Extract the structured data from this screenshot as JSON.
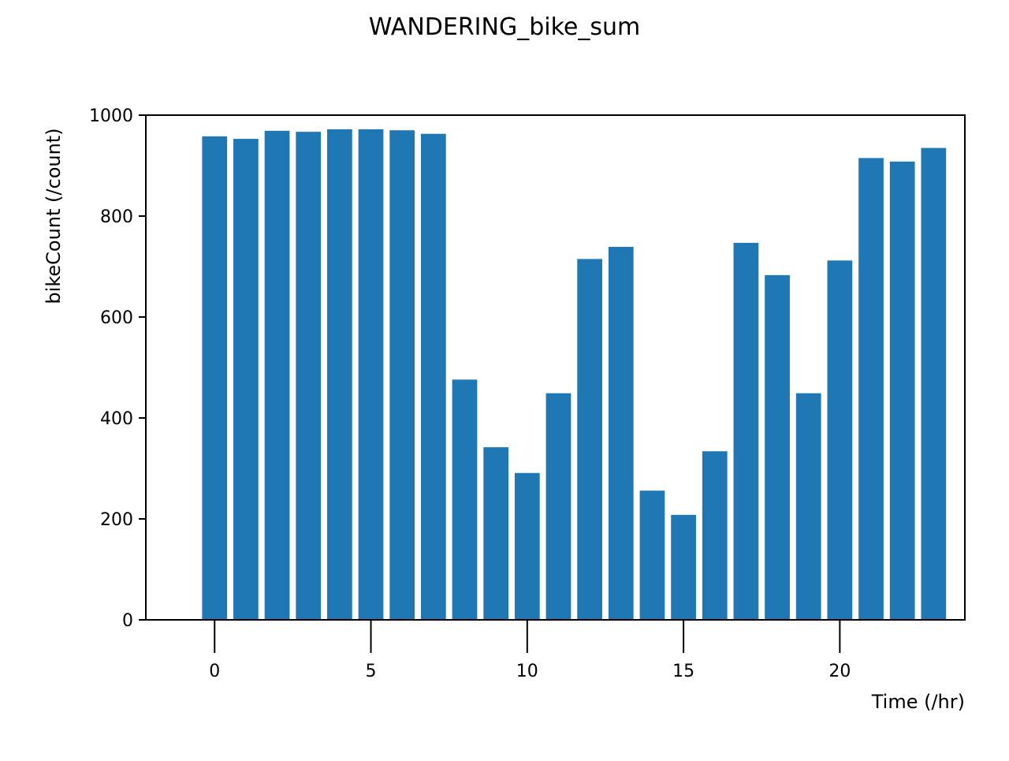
{
  "chart_data": {
    "type": "bar",
    "title": "WANDERING_bike_sum",
    "xlabel": "Time (/hr)",
    "ylabel": "bikeCount (/count)",
    "x": [
      0,
      1,
      2,
      3,
      4,
      5,
      6,
      7,
      8,
      9,
      10,
      11,
      12,
      13,
      14,
      15,
      16,
      17,
      18,
      19,
      20,
      21,
      22,
      23
    ],
    "values": [
      958,
      953,
      969,
      967,
      972,
      972,
      970,
      963,
      476,
      342,
      291,
      449,
      715,
      739,
      256,
      208,
      334,
      747,
      683,
      449,
      712,
      915,
      908,
      935
    ],
    "xlim": [
      -2.2,
      24.0
    ],
    "ylim": [
      0,
      1000
    ],
    "xticks": [
      0,
      5,
      10,
      15,
      20
    ],
    "yticks": [
      0,
      200,
      400,
      600,
      800,
      1000
    ],
    "bar_color": "#1f77b4",
    "grid": false,
    "legend": "none"
  }
}
